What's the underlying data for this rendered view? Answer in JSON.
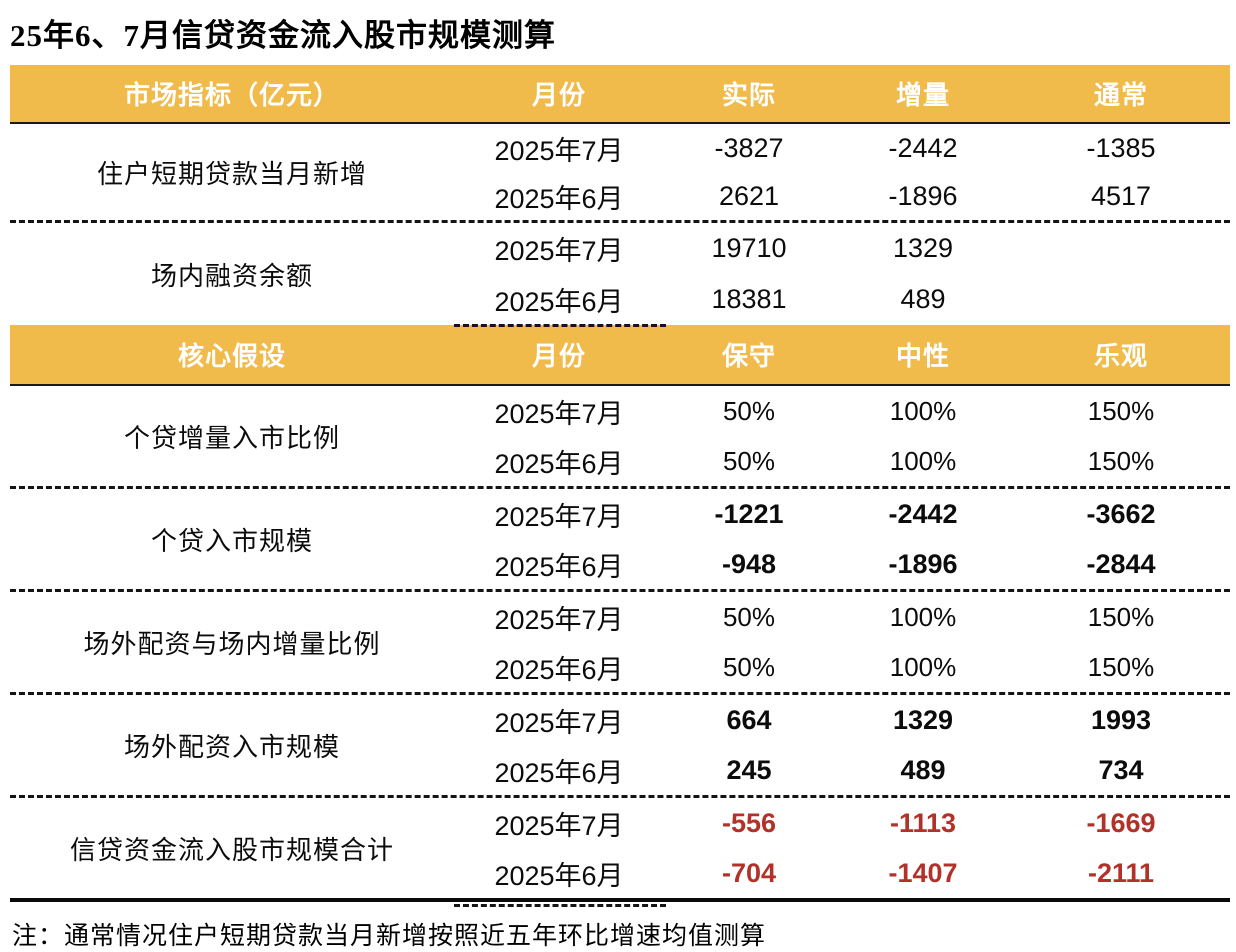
{
  "title": "25年6、7月信贷资金流入股市规模测算",
  "note": "注：通常情况住户短期贷款当月新增按照近五年环比增速均值测算",
  "colors": {
    "header_bg": "#F0BB4A",
    "header_text": "#FFFFFF",
    "total_row_red": "#B23129",
    "body_text": "#0C0C0C",
    "divider_black": "#141414"
  },
  "chart_data": {
    "type": "table",
    "title": "25年6、7月信贷资金流入股市规模测算",
    "note": "注：通常情况住户短期贷款当月新增按照近五年环比增速均值测算",
    "panel1": {
      "headers": [
        "市场指标（亿元）",
        "月份",
        "实际",
        "增量",
        "通常"
      ],
      "sections": [
        {
          "label": "住户短期贷款当月新增",
          "rows": [
            {
              "month": "2025年7月",
              "actual": "-3827",
              "increment": "-2442",
              "usual": "-1385"
            },
            {
              "month": "2025年6月",
              "actual": "2621",
              "increment": "-1896",
              "usual": "4517"
            }
          ]
        },
        {
          "label": "场内融资余额",
          "rows": [
            {
              "month": "2025年7月",
              "actual": "19710",
              "increment": "1329",
              "usual": ""
            },
            {
              "month": "2025年6月",
              "actual": "18381",
              "increment": "489",
              "usual": ""
            }
          ]
        }
      ]
    },
    "panel2": {
      "headers": [
        "核心假设",
        "月份",
        "保守",
        "中性",
        "乐观"
      ],
      "sections": [
        {
          "label": "个贷增量入市比例",
          "emphasis": "normal",
          "rows": [
            {
              "month": "2025年7月",
              "conservative": "50%",
              "neutral": "100%",
              "optimistic": "150%"
            },
            {
              "month": "2025年6月",
              "conservative": "50%",
              "neutral": "100%",
              "optimistic": "150%"
            }
          ]
        },
        {
          "label": "个贷入市规模",
          "emphasis": "bold",
          "rows": [
            {
              "month": "2025年7月",
              "conservative": "-1221",
              "neutral": "-2442",
              "optimistic": "-3662"
            },
            {
              "month": "2025年6月",
              "conservative": "-948",
              "neutral": "-1896",
              "optimistic": "-2844"
            }
          ]
        },
        {
          "label": "场外配资与场内增量比例",
          "emphasis": "normal",
          "rows": [
            {
              "month": "2025年7月",
              "conservative": "50%",
              "neutral": "100%",
              "optimistic": "150%"
            },
            {
              "month": "2025年6月",
              "conservative": "50%",
              "neutral": "100%",
              "optimistic": "150%"
            }
          ]
        },
        {
          "label": "场外配资入市规模",
          "emphasis": "bold",
          "rows": [
            {
              "month": "2025年7月",
              "conservative": "664",
              "neutral": "1329",
              "optimistic": "1993"
            },
            {
              "month": "2025年6月",
              "conservative": "245",
              "neutral": "489",
              "optimistic": "734"
            }
          ]
        },
        {
          "label": "信贷资金流入股市规模合计",
          "emphasis": "red-bold",
          "rows": [
            {
              "month": "2025年7月",
              "conservative": "-556",
              "neutral": "-1113",
              "optimistic": "-1669"
            },
            {
              "month": "2025年6月",
              "conservative": "-704",
              "neutral": "-1407",
              "optimistic": "-2111"
            }
          ]
        }
      ]
    }
  }
}
